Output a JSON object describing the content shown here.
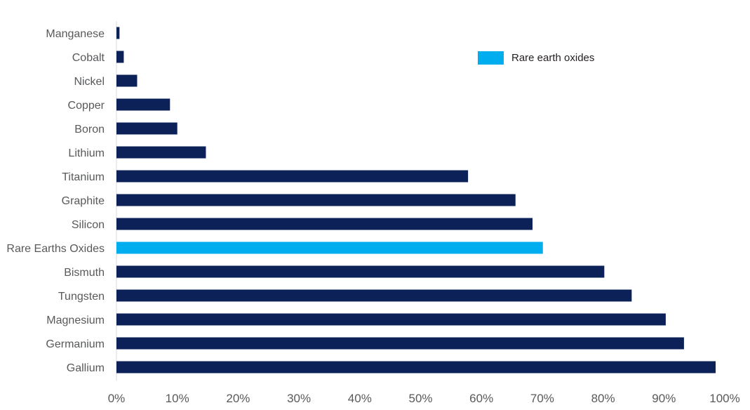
{
  "chart_data": {
    "type": "bar",
    "orientation": "horizontal",
    "categories": [
      "Manganese",
      "Cobalt",
      "Nickel",
      "Copper",
      "Boron",
      "Lithium",
      "Titanium",
      "Graphite",
      "Silicon",
      "Rare Earths Oxides",
      "Bismuth",
      "Tungsten",
      "Magnesium",
      "Germanium",
      "Gallium"
    ],
    "values": [
      0.5,
      1.2,
      3.4,
      8.8,
      10,
      14.7,
      57.8,
      65.6,
      68.4,
      70.1,
      80.2,
      84.7,
      90.3,
      93.3,
      98.5
    ],
    "highlight_category": "Rare Earths Oxides",
    "xlim": [
      0,
      100
    ],
    "x_ticks": [
      "0%",
      "10%",
      "20%",
      "30%",
      "40%",
      "50%",
      "60%",
      "70%",
      "80%",
      "90%",
      "100%"
    ],
    "title": "",
    "xlabel": "",
    "ylabel": "",
    "grid": false,
    "legend": {
      "position": "top-right",
      "entries": [
        {
          "label": "Rare earth oxides",
          "color": "#00aeef"
        }
      ]
    },
    "colors": {
      "default": "#0b2158",
      "highlight": "#00aeef",
      "axis": "#d9d9d9"
    }
  }
}
